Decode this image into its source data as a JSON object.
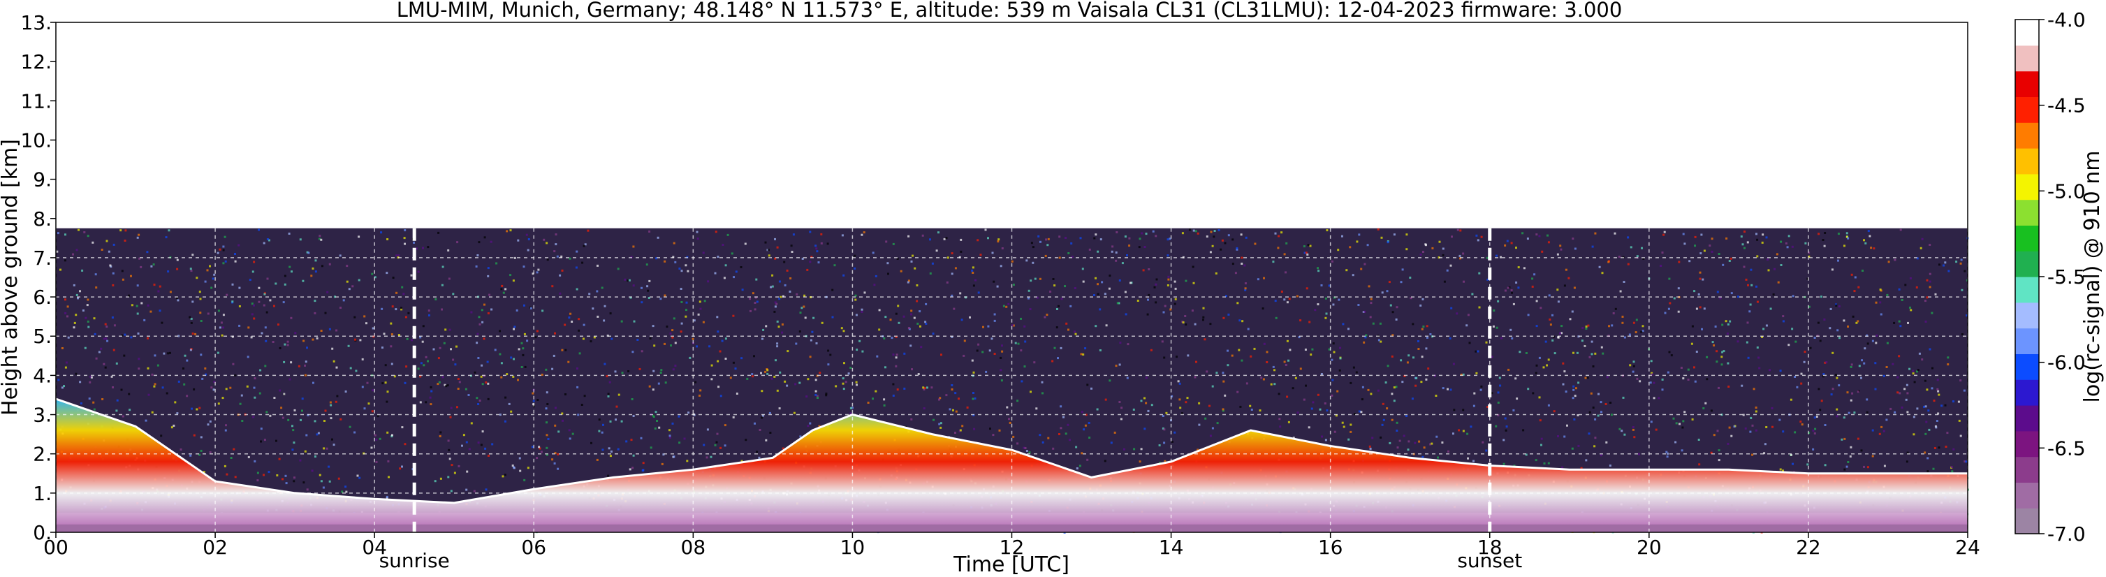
{
  "chart_data": {
    "type": "heatmap",
    "title": "LMU-MIM, Munich, Germany; 48.148° N 11.573° E, altitude: 539 m    Vaisala CL31 (CL31LMU): 12-04-2023    firmware: 3.000",
    "xlabel": "Time [UTC]",
    "ylabel": "Height above ground [km]",
    "xlim": [
      0,
      24
    ],
    "ylim": [
      0,
      13
    ],
    "x_ticks": [
      "00",
      "02",
      "04",
      "06",
      "08",
      "10",
      "12",
      "14",
      "16",
      "18",
      "20",
      "22",
      "24"
    ],
    "y_ticks": [
      "0.",
      "1.",
      "2.",
      "3.",
      "4.",
      "5.",
      "6.",
      "7.",
      "8.",
      "9.",
      "10.",
      "11.",
      "12.",
      "13."
    ],
    "grid": true,
    "data_ceiling_km": 7.75,
    "annotations": [
      {
        "label": "sunrise",
        "x": 4.5
      },
      {
        "label": "sunset",
        "x": 18.0
      }
    ],
    "colorbar": {
      "label": "log(rc-signal) @ 910 nm",
      "range": [
        -7.0,
        -4.0
      ],
      "ticks": [
        "-4.0",
        "-4.5",
        "-5.0",
        "-5.5",
        "-6.0",
        "-6.5",
        "-7.0"
      ]
    },
    "boundary_layer_top_km": {
      "time_h": [
        0,
        1,
        2,
        3,
        4,
        5,
        6,
        7,
        8,
        9,
        9.5,
        10,
        11,
        12,
        13,
        14,
        15,
        16,
        17,
        18,
        19,
        20,
        21,
        22,
        23,
        24
      ],
      "height_km": [
        3.4,
        2.7,
        1.3,
        1.0,
        0.85,
        0.75,
        1.1,
        1.4,
        1.6,
        1.9,
        2.6,
        3.0,
        2.5,
        2.1,
        1.4,
        1.8,
        2.6,
        2.2,
        1.9,
        1.7,
        1.6,
        1.6,
        1.6,
        1.5,
        1.5,
        1.5
      ]
    },
    "colors": {
      "colormap": [
        "#9c84a4",
        "#a06ca4",
        "#8c3c8c",
        "#7c1480",
        "#5c0c8c",
        "#2c18d0",
        "#0c4cff",
        "#6c94ff",
        "#a4bcff",
        "#60e4c4",
        "#20b050",
        "#18c020",
        "#8ce030",
        "#f4f400",
        "#ffc000",
        "#ff7c00",
        "#ff2000",
        "#e80000",
        "#f0c0c0",
        "#ffffff"
      ],
      "noise_background": "#2e2346",
      "grid": "#ffffff",
      "frame": "#000000"
    }
  }
}
